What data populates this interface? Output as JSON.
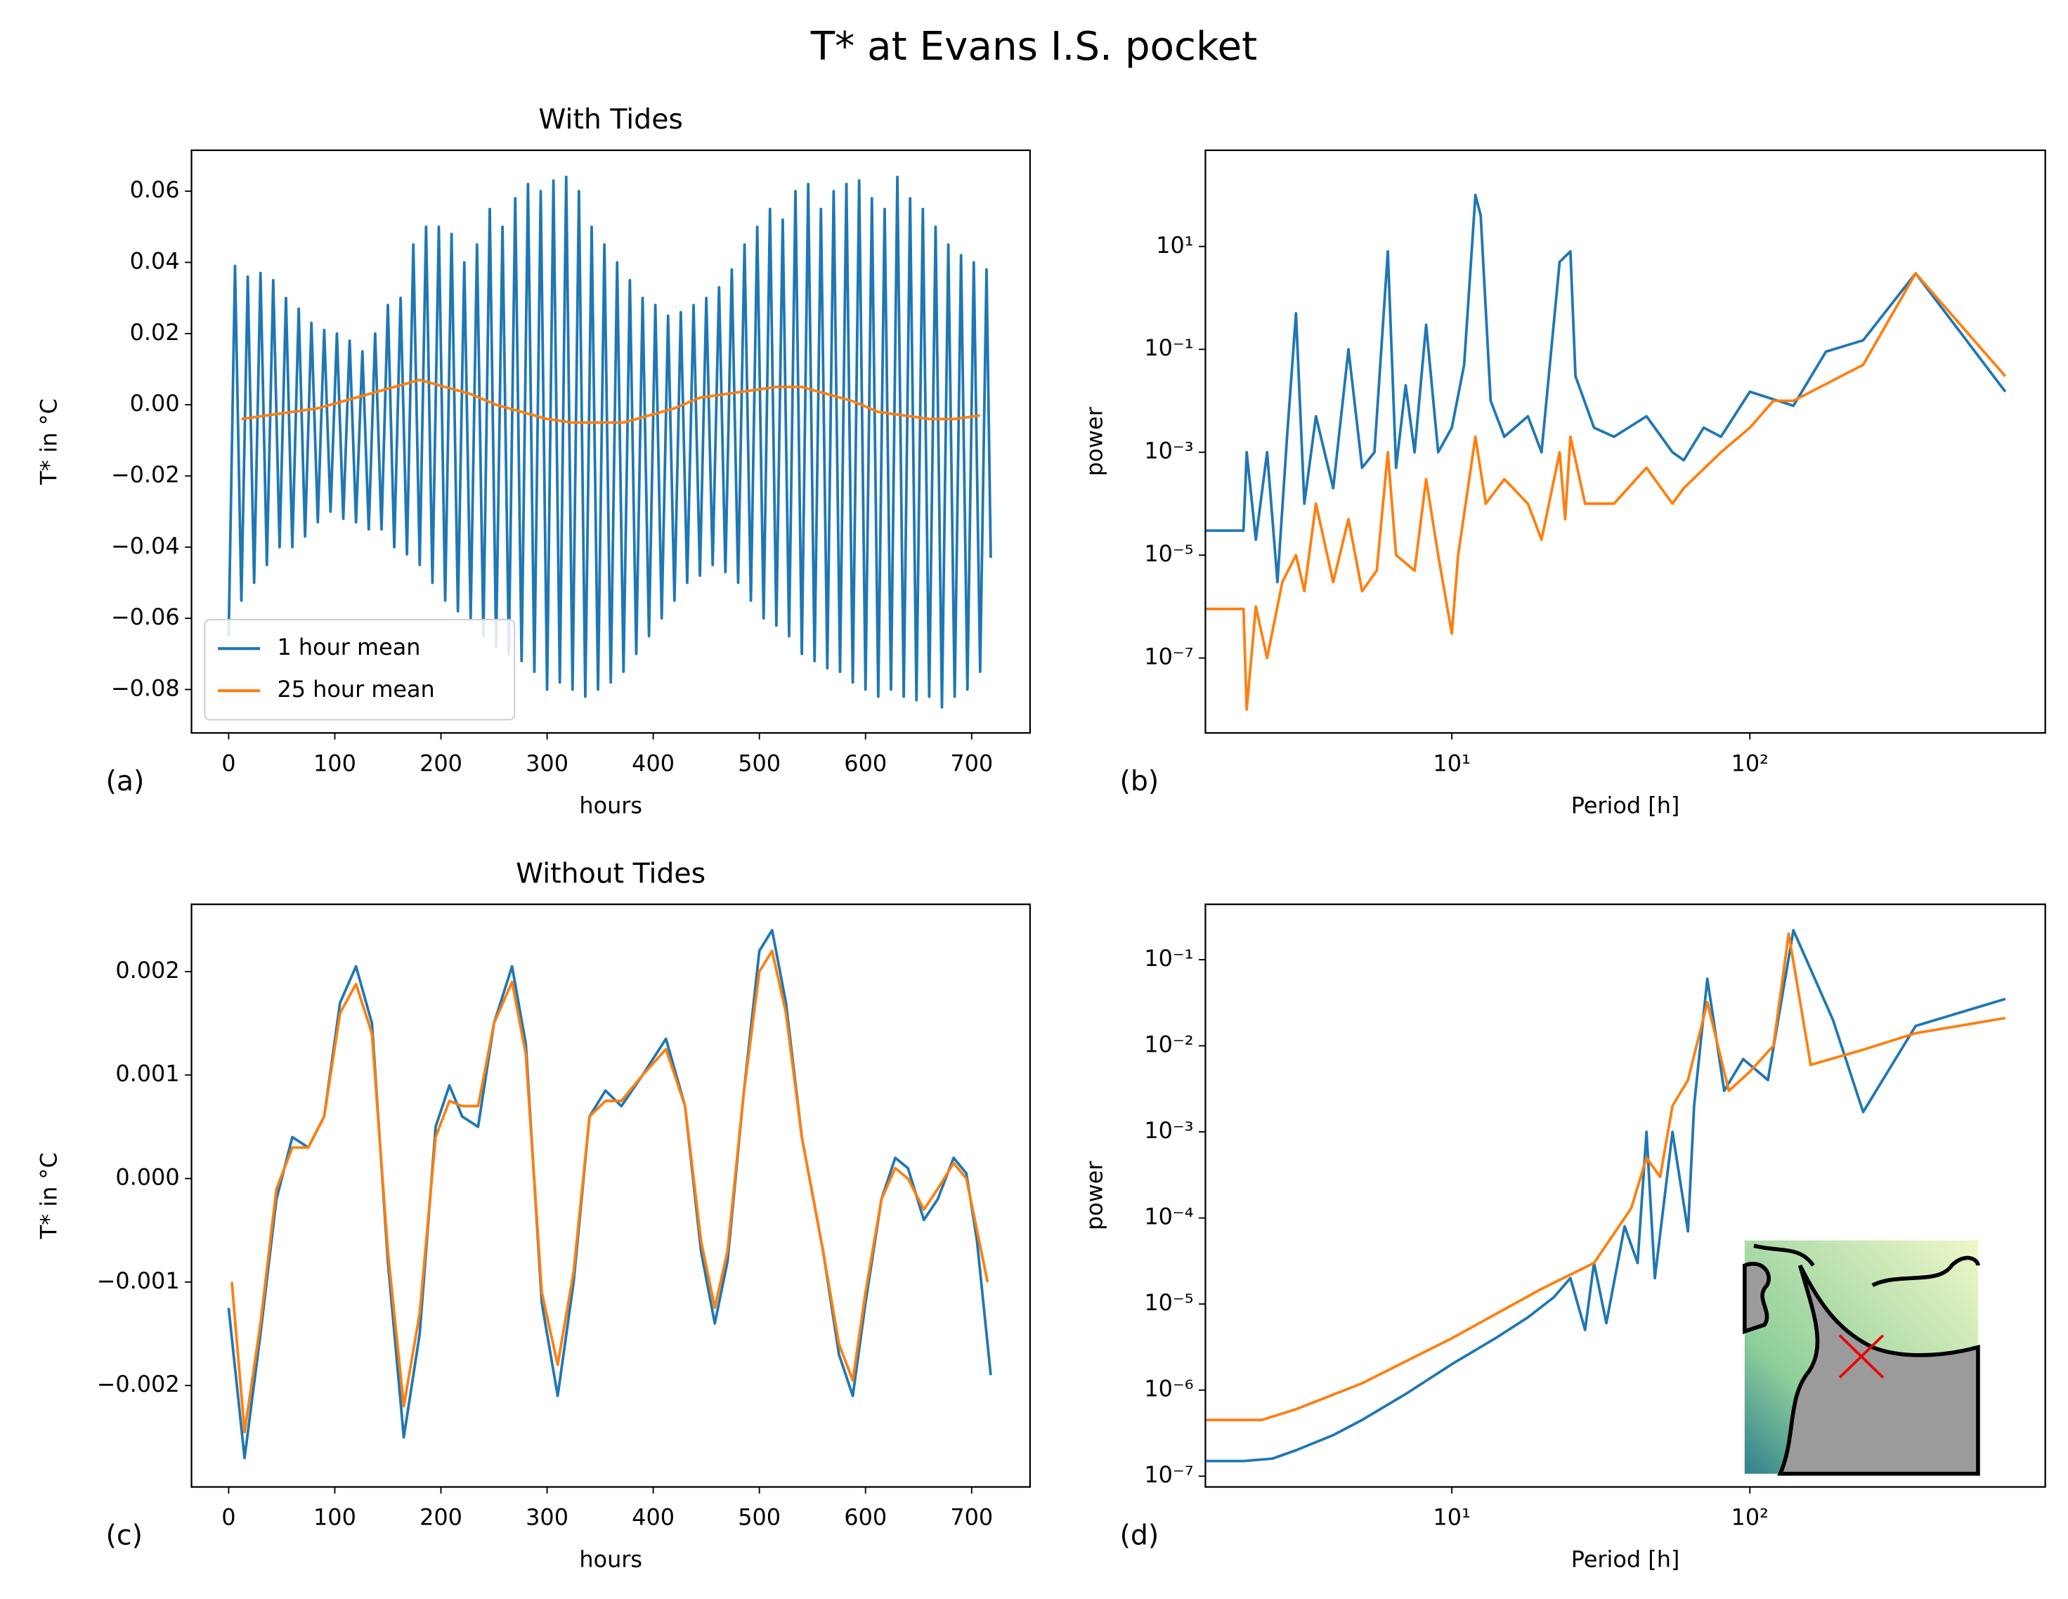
{
  "chart_data": [
    {
      "type": "line",
      "title": "With Tides",
      "xlabel": "hours",
      "ylabel": "T* in °C",
      "panel_label": "(a)",
      "legend": "lower left",
      "xlim": [
        -35,
        755
      ],
      "xticks": [
        0,
        100,
        200,
        300,
        400,
        500,
        600,
        700
      ],
      "ylim": [
        -0.0922,
        0.0715
      ],
      "yticks": [
        {
          "value": -0.08,
          "label": "−0.08"
        },
        {
          "value": -0.06,
          "label": "−0.06"
        },
        {
          "value": -0.04,
          "label": "−0.04"
        },
        {
          "value": -0.02,
          "label": "−0.02"
        },
        {
          "value": 0,
          "label": "0.00"
        },
        0.02,
        0.04,
        0.06
      ],
      "series": [
        {
          "name": "1 hour mean",
          "color": "#1f77b4",
          "x": [
            0,
            6,
            12,
            18,
            24,
            30,
            36,
            42,
            48,
            54,
            60,
            66,
            72,
            78,
            84,
            90,
            96,
            102,
            108,
            114,
            120,
            126,
            132,
            138,
            144,
            150,
            156,
            162,
            168,
            174,
            180,
            186,
            192,
            198,
            204,
            210,
            216,
            222,
            228,
            234,
            240,
            246,
            252,
            258,
            264,
            270,
            276,
            282,
            288,
            294,
            300,
            306,
            312,
            318,
            324,
            330,
            336,
            342,
            348,
            354,
            360,
            366,
            372,
            378,
            384,
            390,
            396,
            402,
            408,
            414,
            420,
            426,
            432,
            438,
            444,
            450,
            456,
            462,
            468,
            474,
            480,
            486,
            492,
            498,
            504,
            510,
            516,
            522,
            528,
            534,
            540,
            546,
            552,
            558,
            564,
            570,
            576,
            582,
            588,
            594,
            600,
            606,
            612,
            618,
            624,
            630,
            636,
            642,
            648,
            654,
            660,
            666,
            672,
            678,
            684,
            690,
            696,
            702,
            708,
            714,
            718
          ],
          "values": [
            -0.065,
            0.039,
            -0.055,
            0.036,
            -0.05,
            0.037,
            -0.045,
            0.035,
            -0.04,
            0.03,
            -0.04,
            0.027,
            -0.037,
            0.023,
            -0.033,
            0.021,
            -0.03,
            0.02,
            -0.032,
            0.018,
            -0.033,
            0.015,
            -0.035,
            0.02,
            -0.035,
            0.028,
            -0.04,
            0.03,
            -0.042,
            0.045,
            -0.045,
            0.05,
            -0.05,
            0.05,
            -0.055,
            0.048,
            -0.058,
            0.04,
            -0.06,
            0.045,
            -0.065,
            0.055,
            -0.068,
            0.05,
            -0.07,
            0.058,
            -0.072,
            0.062,
            -0.075,
            0.06,
            -0.08,
            0.063,
            -0.078,
            0.064,
            -0.08,
            0.06,
            -0.082,
            0.05,
            -0.08,
            0.045,
            -0.078,
            0.04,
            -0.075,
            0.035,
            -0.07,
            0.03,
            -0.065,
            0.028,
            -0.06,
            0.025,
            -0.055,
            0.026,
            -0.05,
            0.028,
            -0.048,
            0.03,
            -0.045,
            0.033,
            -0.047,
            0.038,
            -0.05,
            0.045,
            -0.055,
            0.05,
            -0.06,
            0.055,
            -0.062,
            0.052,
            -0.065,
            0.06,
            -0.07,
            0.062,
            -0.072,
            0.055,
            -0.074,
            0.06,
            -0.075,
            0.062,
            -0.078,
            0.063,
            -0.08,
            0.058,
            -0.082,
            0.055,
            -0.08,
            0.064,
            -0.082,
            0.058,
            -0.083,
            0.055,
            -0.082,
            0.05,
            -0.085,
            0.045,
            -0.082,
            0.042,
            -0.08,
            0.04,
            -0.075,
            0.038,
            -0.043
          ]
        },
        {
          "name": "25 hour mean",
          "color": "#ff7f0e",
          "x": [
            12,
            36,
            60,
            84,
            108,
            132,
            156,
            180,
            204,
            228,
            252,
            276,
            300,
            324,
            348,
            372,
            396,
            420,
            444,
            468,
            492,
            516,
            540,
            564,
            588,
            612,
            636,
            660,
            684,
            708
          ],
          "values": [
            -0.004,
            -0.003,
            -0.002,
            -0.001,
            0.001,
            0.003,
            0.005,
            0.007,
            0.005,
            0.003,
            0.0,
            -0.002,
            -0.004,
            -0.005,
            -0.005,
            -0.005,
            -0.003,
            -0.001,
            0.002,
            0.003,
            0.004,
            0.005,
            0.005,
            0.003,
            0.001,
            -0.002,
            -0.003,
            -0.004,
            -0.004,
            -0.003
          ]
        }
      ]
    },
    {
      "type": "line",
      "xlabel": "Period [h]",
      "ylabel": "power",
      "panel_label": "(b)",
      "xscale": "log",
      "yscale": "log",
      "xlim": [
        1.49,
        980
      ],
      "xticks": [
        {
          "value": 10,
          "label": "10¹"
        },
        {
          "value": 100,
          "label": "10²"
        }
      ],
      "ylim": [
        3.5e-09,
        740
      ],
      "yticks": [
        {
          "value": 1e-07,
          "label": "10⁻⁷"
        },
        {
          "value": 1e-05,
          "label": "10⁻⁵"
        },
        {
          "value": 0.001,
          "label": "10⁻³"
        },
        {
          "value": 0.1,
          "label": "10⁻¹"
        },
        {
          "value": 10,
          "label": "10¹"
        }
      ],
      "series": [
        {
          "color": "#1f77b4",
          "x": [
            1.49,
            2.0,
            2.05,
            2.2,
            2.4,
            2.6,
            2.8,
            3.0,
            3.2,
            3.5,
            4.0,
            4.5,
            5.0,
            5.5,
            6.1,
            6.5,
            7.0,
            7.5,
            8.2,
            9.0,
            10,
            11,
            12.0,
            12.5,
            13.5,
            15,
            18,
            20,
            23,
            25,
            26,
            30,
            35,
            45,
            55,
            60,
            70,
            80,
            100,
            140,
            180,
            240,
            360,
            720
          ],
          "values": [
            3e-05,
            3e-05,
            0.001,
            2e-05,
            0.001,
            3e-06,
            0.002,
            0.5,
            0.0001,
            0.005,
            0.0002,
            0.1,
            0.0005,
            0.001,
            8,
            0.0005,
            0.02,
            0.001,
            0.3,
            0.001,
            0.003,
            0.05,
            100,
            40,
            0.01,
            0.002,
            0.005,
            0.001,
            5,
            8,
            0.03,
            0.003,
            0.002,
            0.005,
            0.001,
            0.0007,
            0.003,
            0.002,
            0.015,
            0.008,
            0.09,
            0.15,
            3,
            0.015
          ]
        },
        {
          "color": "#ff7f0e",
          "x": [
            1.49,
            2.0,
            2.05,
            2.2,
            2.4,
            2.7,
            3.0,
            3.2,
            3.5,
            4.0,
            4.5,
            5.0,
            5.6,
            6.1,
            6.5,
            7.5,
            8.2,
            9.0,
            10,
            10.5,
            12.0,
            13,
            15,
            18,
            20,
            23,
            24,
            25,
            28,
            35,
            45,
            55,
            60,
            80,
            100,
            120,
            140,
            240,
            360,
            720
          ],
          "values": [
            9e-07,
            9e-07,
            1e-08,
            1e-06,
            1e-07,
            3e-06,
            1e-05,
            2e-06,
            0.0001,
            3e-06,
            5e-05,
            2e-06,
            5e-06,
            0.001,
            1e-05,
            5e-06,
            0.0003,
            1e-05,
            3e-07,
            1e-05,
            0.002,
            0.0001,
            0.0003,
            0.0001,
            2e-05,
            0.001,
            5e-05,
            0.002,
            0.0001,
            0.0001,
            0.0005,
            0.0001,
            0.0002,
            0.001,
            0.003,
            0.01,
            0.01,
            0.05,
            3,
            0.03
          ]
        }
      ]
    },
    {
      "type": "line",
      "title": "Without Tides",
      "xlabel": "hours",
      "ylabel": "T* in °C",
      "panel_label": "(c)",
      "xlim": [
        -35,
        755
      ],
      "xticks": [
        0,
        100,
        200,
        300,
        400,
        500,
        600,
        700
      ],
      "ylim": [
        -0.00298,
        0.00265
      ],
      "yticks": [
        {
          "value": -0.002,
          "label": "−0.002"
        },
        {
          "value": -0.001,
          "label": "−0.001"
        },
        {
          "value": 0,
          "label": "0.000"
        },
        0.001,
        0.002
      ],
      "series": [
        {
          "color": "#1f77b4",
          "x": [
            0,
            15,
            30,
            45,
            60,
            75,
            90,
            105,
            120,
            135,
            150,
            165,
            180,
            195,
            208,
            220,
            235,
            250,
            267,
            280,
            295,
            310,
            325,
            340,
            355,
            370,
            390,
            412,
            430,
            445,
            458,
            470,
            485,
            500,
            512,
            525,
            540,
            560,
            575,
            588,
            600,
            615,
            628,
            640,
            655,
            668,
            683,
            695,
            705,
            718
          ],
          "values": [
            -0.00125,
            -0.0027,
            -0.0015,
            -0.0002,
            0.0004,
            0.0003,
            0.0006,
            0.0017,
            0.00205,
            0.0015,
            -0.0008,
            -0.0025,
            -0.0015,
            0.0005,
            0.0009,
            0.0006,
            0.0005,
            0.0015,
            0.00205,
            0.0013,
            -0.0012,
            -0.0021,
            -0.001,
            0.0006,
            0.00085,
            0.0007,
            0.001,
            0.00135,
            0.0007,
            -0.0007,
            -0.0014,
            -0.0008,
            0.0008,
            0.0022,
            0.0024,
            0.0017,
            0.0004,
            -0.0007,
            -0.0017,
            -0.0021,
            -0.0012,
            -0.0002,
            0.0002,
            0.0001,
            -0.0004,
            -0.0002,
            0.0002,
            5e-05,
            -0.0006,
            -0.0019
          ]
        },
        {
          "color": "#ff7f0e",
          "x": [
            3,
            15,
            30,
            45,
            60,
            75,
            90,
            105,
            120,
            135,
            150,
            165,
            180,
            195,
            208,
            220,
            235,
            250,
            267,
            280,
            295,
            310,
            325,
            340,
            355,
            370,
            390,
            412,
            430,
            445,
            458,
            470,
            485,
            500,
            512,
            525,
            540,
            560,
            575,
            588,
            600,
            615,
            628,
            640,
            655,
            668,
            683,
            695,
            705,
            715
          ],
          "values": [
            -0.001,
            -0.00245,
            -0.0014,
            -0.0001,
            0.0003,
            0.0003,
            0.0006,
            0.0016,
            0.00188,
            0.0014,
            -0.0007,
            -0.0022,
            -0.0013,
            0.0004,
            0.00075,
            0.0007,
            0.0007,
            0.0015,
            0.0019,
            0.0012,
            -0.0011,
            -0.0018,
            -0.0009,
            0.0006,
            0.00075,
            0.00075,
            0.001,
            0.00125,
            0.0007,
            -0.0006,
            -0.00125,
            -0.0007,
            0.0008,
            0.002,
            0.0022,
            0.0016,
            0.0004,
            -0.0007,
            -0.0016,
            -0.00195,
            -0.0011,
            -0.0002,
            0.0001,
            0,
            -0.0003,
            -0.0001,
            0.00015,
            0,
            -0.0005,
            -0.001
          ]
        }
      ]
    },
    {
      "type": "line",
      "xlabel": "Period [h]",
      "ylabel": "power",
      "panel_label": "(d)",
      "xscale": "log",
      "yscale": "log",
      "xlim": [
        1.49,
        980
      ],
      "xticks": [
        {
          "value": 10,
          "label": "10¹"
        },
        {
          "value": 100,
          "label": "10²"
        }
      ],
      "ylim": [
        7.5e-08,
        0.44
      ],
      "yticks": [
        {
          "value": 1e-07,
          "label": "10⁻⁷"
        },
        {
          "value": 1e-06,
          "label": "10⁻⁶"
        },
        {
          "value": 1e-05,
          "label": "10⁻⁵"
        },
        {
          "value": 0.0001,
          "label": "10⁻⁴"
        },
        {
          "value": 0.001,
          "label": "10⁻³"
        },
        {
          "value": 0.01,
          "label": "10⁻²"
        },
        {
          "value": 0.1,
          "label": "10⁻¹"
        }
      ],
      "series": [
        {
          "color": "#1f77b4",
          "x": [
            1.49,
            2.0,
            2.5,
            3,
            4,
            5,
            7,
            10,
            14,
            18,
            22,
            25,
            28,
            30,
            33,
            38,
            42,
            45,
            48,
            52,
            55,
            62,
            65,
            72,
            82,
            95,
            115,
            140,
            190,
            240,
            360,
            720
          ],
          "values": [
            1.5e-07,
            1.5e-07,
            1.6e-07,
            2e-07,
            3e-07,
            4.5e-07,
            9e-07,
            2e-06,
            4e-06,
            7e-06,
            1.2e-05,
            2e-05,
            5e-06,
            3e-05,
            6e-06,
            8e-05,
            3e-05,
            0.001,
            2e-05,
            0.0002,
            0.001,
            7e-05,
            0.002,
            0.06,
            0.003,
            0.007,
            0.004,
            0.22,
            0.02,
            0.0017,
            0.017,
            0.035
          ]
        },
        {
          "color": "#ff7f0e",
          "x": [
            1.49,
            2.3,
            3,
            5,
            10,
            20,
            30,
            40,
            45,
            50,
            55,
            62,
            72,
            85,
            100,
            120,
            135,
            160,
            240,
            360,
            720
          ],
          "values": [
            4.5e-07,
            4.5e-07,
            6e-07,
            1.2e-06,
            4e-06,
            1.5e-05,
            3e-05,
            0.00013,
            0.0005,
            0.0003,
            0.002,
            0.004,
            0.032,
            0.003,
            0.005,
            0.01,
            0.2,
            0.006,
            0.009,
            0.014,
            0.021
          ]
        }
      ]
    }
  ],
  "title": "T* at Evans I.S. pocket"
}
